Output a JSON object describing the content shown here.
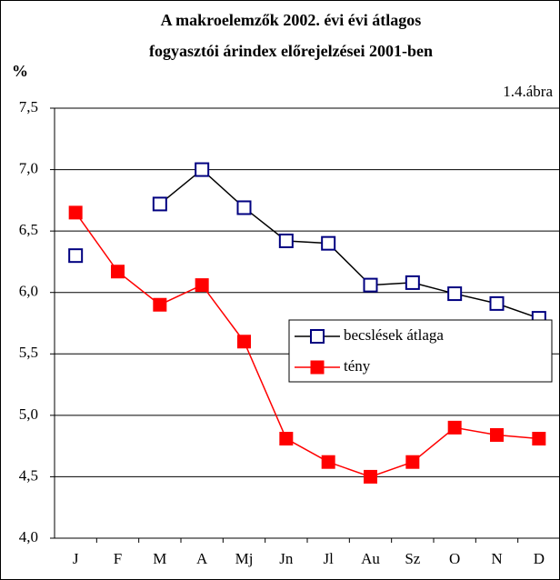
{
  "chart_data": {
    "type": "line",
    "title": [
      "A makroelemzők 2002. évi évi átlagos",
      "fogyasztói árindex előrejelzései 2001-ben"
    ],
    "ylabel": "%",
    "annotation": "1.4.ábra",
    "categories": [
      "J",
      "F",
      "M",
      "A",
      "Mj",
      "Jn",
      "Jl",
      "Au",
      "Sz",
      "O",
      "N",
      "D"
    ],
    "series": [
      {
        "name": "becslések átlaga",
        "color": "#000080",
        "line_color": "#000000",
        "marker": "hollow-square",
        "values": [
          6.3,
          null,
          6.72,
          7.0,
          6.69,
          6.42,
          6.4,
          6.06,
          6.08,
          5.99,
          5.91,
          5.79
        ]
      },
      {
        "name": "tény",
        "color": "#ff0000",
        "line_color": "#ff0000",
        "marker": "filled-square",
        "values": [
          6.65,
          6.17,
          5.9,
          6.06,
          5.6,
          4.81,
          4.62,
          4.5,
          4.62,
          4.9,
          4.84,
          4.81
        ]
      }
    ],
    "ylim": [
      4.0,
      7.5
    ],
    "yticks": [
      {
        "value": 4.0,
        "label": "4,0"
      },
      {
        "value": 4.5,
        "label": "4,5"
      },
      {
        "value": 5.0,
        "label": "5,0"
      },
      {
        "value": 5.5,
        "label": "5,5"
      },
      {
        "value": 6.0,
        "label": "6,0"
      },
      {
        "value": 6.5,
        "label": "6,5"
      },
      {
        "value": 7.0,
        "label": "7,0"
      },
      {
        "value": 7.5,
        "label": "7,5"
      }
    ],
    "grid": true
  }
}
